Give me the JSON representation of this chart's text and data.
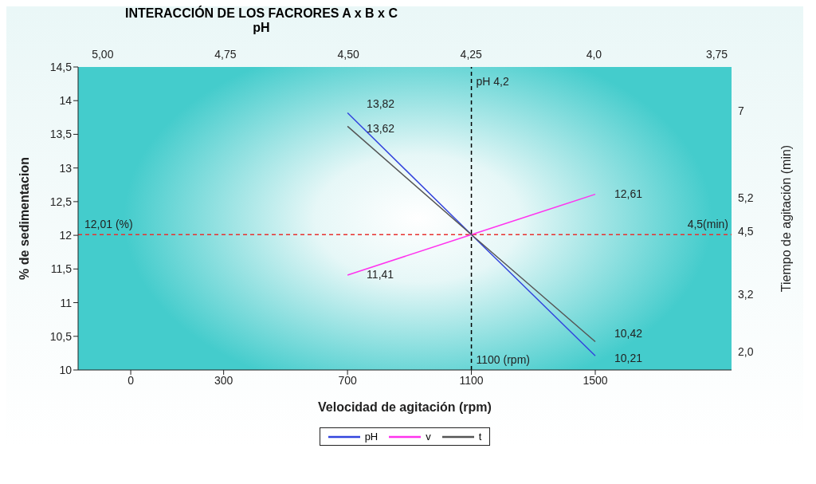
{
  "chart_data": {
    "type": "line",
    "title": "INTERACCIÓN DE LOS FACRORES A x B x C",
    "xlabel": "Velocidad de agitación (rpm)",
    "ylabel": "% de sedimentacion",
    "y2label": "Tiempo de agitación (min)",
    "x2label": "pH",
    "xlim": [
      -170,
      1940
    ],
    "xticks": [
      0,
      300,
      700,
      1100,
      1500
    ],
    "x2lim": [
      5.05,
      3.72
    ],
    "x2ticks": [
      {
        "value": 5,
        "label": "5,00"
      },
      {
        "value": 4.75,
        "label": "4,75"
      },
      {
        "value": 4.5,
        "label": "4,50"
      },
      {
        "value": 4.25,
        "label": "4,25"
      },
      {
        "value": 4,
        "label": "4,0"
      },
      {
        "value": 3.75,
        "label": "3,75"
      }
    ],
    "ylim": [
      10,
      14.5
    ],
    "yticks": [
      10,
      {
        "value": 10.5,
        "label": "10,5"
      },
      11,
      {
        "value": 11.5,
        "label": "11,5"
      },
      12,
      {
        "value": 12.5,
        "label": "12,5"
      },
      13,
      {
        "value": 13.5,
        "label": "13,5"
      },
      14,
      {
        "value": 14.5,
        "label": "14,5"
      }
    ],
    "y2lim": [
      1.62,
      7.92
    ],
    "y2ticks": [
      7,
      {
        "value": 5.2,
        "label": "5,2"
      },
      {
        "value": 4.5,
        "label": "4,5"
      },
      {
        "value": 3.2,
        "label": "3,2"
      },
      {
        "value": 2,
        "label": "2,0"
      }
    ],
    "series": [
      {
        "name": "pH",
        "color": "#3344dd",
        "x": [
          700,
          1100,
          1500
        ],
        "values": [
          13.82,
          12.01,
          10.21
        ],
        "value_labels": [
          "13,82",
          null,
          "10,21"
        ]
      },
      {
        "name": "v",
        "color": "#ff33ee",
        "x": [
          700,
          1100,
          1500
        ],
        "values": [
          11.41,
          12.01,
          12.61
        ],
        "value_labels": [
          "11,41",
          null,
          "12,61"
        ]
      },
      {
        "name": "t",
        "color": "#555555",
        "x": [
          700,
          1100,
          1500
        ],
        "values": [
          13.62,
          12.01,
          10.42
        ],
        "value_labels": [
          "13,62",
          null,
          "10,42"
        ]
      }
    ],
    "ref_lines": [
      {
        "axis": "y",
        "value": 12.01,
        "label": "12,01 (%)",
        "color": "#e8312f",
        "line_style": "dashed"
      },
      {
        "axis": "x",
        "value": 1100,
        "label": "1100 (rpm)",
        "color": "#000000",
        "line_style": "dashed"
      }
    ],
    "annotations": [
      {
        "text": "pH 4,2",
        "x": 1100,
        "y": 14.3
      },
      {
        "text": "4,5(min)",
        "x": 1940,
        "y": 12.01
      }
    ],
    "legend": "bottom",
    "marker": "none",
    "grid": false
  }
}
